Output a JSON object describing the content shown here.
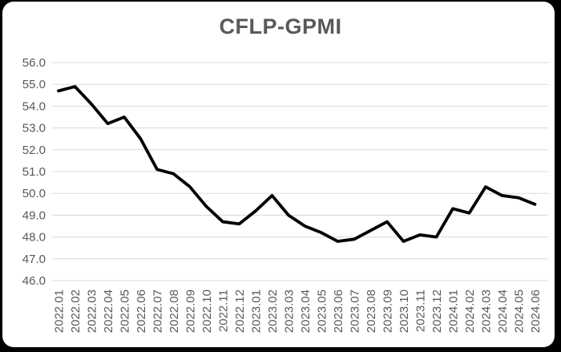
{
  "page": {
    "background_color": "#000000",
    "card_background_color": "#FFFFFF"
  },
  "header": {
    "title": "CFLP-GPMI",
    "title_color": "#595959"
  },
  "chart_data": {
    "type": "line",
    "title": "CFLP-GPMI",
    "categories": [
      "2022.01",
      "2022.02",
      "2022.03",
      "2022.04",
      "2022.05",
      "2022.06",
      "2022.07",
      "2022.08",
      "2022.09",
      "2022.10",
      "2022.11",
      "2022.12",
      "2023.01",
      "2023.02",
      "2023.03",
      "2023.04",
      "2023.05",
      "2023.06",
      "2023.07",
      "2023.08",
      "2023.09",
      "2023.10",
      "2023.11",
      "2023.12",
      "2024.01",
      "2024.02",
      "2024.03",
      "2024.04",
      "2024.05",
      "2024.06"
    ],
    "series": [
      {
        "name": "CFLP-GPMI",
        "color": "#000000",
        "values": [
          54.7,
          54.9,
          54.1,
          53.2,
          53.5,
          52.5,
          51.1,
          50.9,
          50.3,
          49.4,
          48.7,
          48.6,
          49.2,
          49.9,
          49.0,
          48.5,
          48.2,
          47.8,
          47.9,
          48.3,
          48.7,
          47.8,
          48.1,
          48.0,
          49.3,
          49.1,
          50.3,
          49.9,
          49.8,
          49.5
        ]
      }
    ],
    "xlabel": "",
    "ylabel": "",
    "ylim": [
      46.0,
      56.0
    ],
    "ytick_step": 1.0,
    "ytick_decimals": 1,
    "grid": true,
    "gridline_color": "#D9D9D9",
    "tick_label_color": "#595959",
    "legend_position": "none",
    "x_label_rotation": -90
  }
}
